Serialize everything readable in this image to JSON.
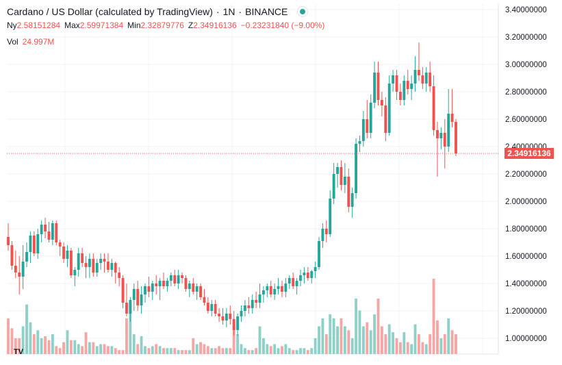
{
  "legend": {
    "title": "Cardano / US Dollar (calculated by TradingView)",
    "sep1": "·",
    "interval": "1N",
    "sep2": "·",
    "exchange": "BINANCE",
    "ohlc": [
      {
        "key": "Ny",
        "value": "2.58151284"
      },
      {
        "key": "Max",
        "value": "2.59971384"
      },
      {
        "key": "Min",
        "value": "2.32879776"
      },
      {
        "key": "Z",
        "value": "2.34916136"
      },
      {
        "key": "",
        "value": "−0.23231840 (−9.00%)"
      }
    ],
    "vol_label": "Vol",
    "vol_value": "24.997M"
  },
  "last_price_label": "2.34916136",
  "colors": {
    "up": "#26a69a",
    "down": "#ef5350",
    "up_volume": "#8fd0c8",
    "down_volume": "#f4a7a5",
    "grid": "#f0f3fa",
    "axis_text": "#131722"
  },
  "chart_data": {
    "type": "candlestick",
    "symbol": "ADAUSD",
    "exchange": "BINANCE",
    "interval": "1N",
    "ylim": [
      0.9,
      3.42
    ],
    "yticks": [
      "1.00000000",
      "1.20000000",
      "1.40000000",
      "1.60000000",
      "1.80000000",
      "2.00000000",
      "2.20000000",
      "2.40000000",
      "2.60000000",
      "2.80000000",
      "3.00000000",
      "3.20000000",
      "3.40000000"
    ],
    "last_price": 2.34916136,
    "candles": [
      [
        1.74,
        1.84,
        1.64,
        1.68,
        18
      ],
      [
        1.68,
        1.71,
        1.5,
        1.53,
        13
      ],
      [
        1.53,
        1.64,
        1.44,
        1.48,
        8
      ],
      [
        1.48,
        1.6,
        1.32,
        1.45,
        8
      ],
      [
        1.45,
        1.68,
        1.36,
        1.56,
        14
      ],
      [
        1.56,
        1.7,
        1.52,
        1.63,
        25
      ],
      [
        1.63,
        1.78,
        1.55,
        1.75,
        16
      ],
      [
        1.75,
        1.78,
        1.6,
        1.62,
        10
      ],
      [
        1.62,
        1.8,
        1.58,
        1.76,
        12
      ],
      [
        1.76,
        1.86,
        1.7,
        1.83,
        8
      ],
      [
        1.83,
        1.88,
        1.73,
        1.78,
        9
      ],
      [
        1.78,
        1.85,
        1.7,
        1.72,
        7
      ],
      [
        1.72,
        1.86,
        1.68,
        1.84,
        10
      ],
      [
        1.84,
        1.86,
        1.68,
        1.7,
        4
      ],
      [
        1.7,
        1.72,
        1.6,
        1.67,
        3
      ],
      [
        1.67,
        1.7,
        1.55,
        1.58,
        6
      ],
      [
        1.58,
        1.68,
        1.52,
        1.64,
        12
      ],
      [
        1.64,
        1.66,
        1.44,
        1.46,
        7
      ],
      [
        1.46,
        1.52,
        1.38,
        1.5,
        7
      ],
      [
        1.5,
        1.66,
        1.45,
        1.62,
        5
      ],
      [
        1.62,
        1.66,
        1.52,
        1.55,
        4
      ],
      [
        1.55,
        1.6,
        1.44,
        1.52,
        11
      ],
      [
        1.52,
        1.62,
        1.44,
        1.58,
        6
      ],
      [
        1.58,
        1.62,
        1.45,
        1.48,
        6
      ],
      [
        1.48,
        1.58,
        1.45,
        1.55,
        4
      ],
      [
        1.55,
        1.62,
        1.5,
        1.58,
        5
      ],
      [
        1.58,
        1.62,
        1.48,
        1.56,
        5
      ],
      [
        1.56,
        1.62,
        1.48,
        1.5,
        4
      ],
      [
        1.5,
        1.58,
        1.45,
        1.55,
        4
      ],
      [
        1.55,
        1.56,
        1.4,
        1.48,
        3
      ],
      [
        1.48,
        1.52,
        1.38,
        1.44,
        2
      ],
      [
        1.44,
        1.46,
        1.22,
        1.26,
        2
      ],
      [
        1.26,
        1.4,
        1.16,
        1.18,
        18
      ],
      [
        1.18,
        1.3,
        1.12,
        1.28,
        26
      ],
      [
        1.28,
        1.4,
        1.2,
        1.36,
        10
      ],
      [
        1.36,
        1.42,
        1.2,
        1.24,
        5
      ],
      [
        1.24,
        1.38,
        1.18,
        1.32,
        9
      ],
      [
        1.32,
        1.4,
        1.26,
        1.38,
        4
      ],
      [
        1.38,
        1.45,
        1.3,
        1.34,
        3
      ],
      [
        1.34,
        1.42,
        1.28,
        1.4,
        4
      ],
      [
        1.4,
        1.46,
        1.32,
        1.38,
        5
      ],
      [
        1.38,
        1.44,
        1.28,
        1.42,
        4
      ],
      [
        1.42,
        1.48,
        1.36,
        1.38,
        3
      ],
      [
        1.38,
        1.44,
        1.34,
        1.42,
        3
      ],
      [
        1.42,
        1.48,
        1.38,
        1.46,
        3
      ],
      [
        1.46,
        1.5,
        1.38,
        1.4,
        3
      ],
      [
        1.4,
        1.5,
        1.36,
        1.46,
        2
      ],
      [
        1.46,
        1.48,
        1.4,
        1.44,
        2
      ],
      [
        1.44,
        1.46,
        1.34,
        1.36,
        2
      ],
      [
        1.36,
        1.42,
        1.3,
        1.4,
        2
      ],
      [
        1.4,
        1.44,
        1.32,
        1.34,
        8
      ],
      [
        1.34,
        1.4,
        1.28,
        1.38,
        5
      ],
      [
        1.38,
        1.4,
        1.28,
        1.3,
        6
      ],
      [
        1.3,
        1.36,
        1.24,
        1.26,
        5
      ],
      [
        1.26,
        1.3,
        1.18,
        1.2,
        4
      ],
      [
        1.2,
        1.28,
        1.16,
        1.25,
        3
      ],
      [
        1.25,
        1.28,
        1.16,
        1.18,
        3
      ],
      [
        1.18,
        1.22,
        1.12,
        1.16,
        4
      ],
      [
        1.16,
        1.22,
        1.1,
        1.13,
        3
      ],
      [
        1.13,
        1.22,
        1.08,
        1.18,
        3
      ],
      [
        1.18,
        1.24,
        1.1,
        1.14,
        3
      ],
      [
        1.14,
        1.2,
        1.02,
        1.06,
        14
      ],
      [
        1.06,
        1.18,
        1.02,
        1.16,
        10
      ],
      [
        1.16,
        1.24,
        1.12,
        1.2,
        5
      ],
      [
        1.2,
        1.28,
        1.16,
        1.24,
        3
      ],
      [
        1.24,
        1.3,
        1.18,
        1.22,
        2
      ],
      [
        1.22,
        1.32,
        1.18,
        1.28,
        2
      ],
      [
        1.28,
        1.34,
        1.22,
        1.26,
        3
      ],
      [
        1.26,
        1.4,
        1.22,
        1.32,
        14
      ],
      [
        1.32,
        1.38,
        1.26,
        1.35,
        8
      ],
      [
        1.35,
        1.4,
        1.3,
        1.38,
        5
      ],
      [
        1.38,
        1.42,
        1.3,
        1.32,
        4
      ],
      [
        1.32,
        1.4,
        1.28,
        1.36,
        5
      ],
      [
        1.36,
        1.44,
        1.32,
        1.38,
        3
      ],
      [
        1.38,
        1.42,
        1.3,
        1.34,
        4
      ],
      [
        1.34,
        1.44,
        1.3,
        1.4,
        5
      ],
      [
        1.4,
        1.46,
        1.36,
        1.44,
        3
      ],
      [
        1.44,
        1.48,
        1.36,
        1.38,
        2
      ],
      [
        1.38,
        1.44,
        1.32,
        1.42,
        2
      ],
      [
        1.42,
        1.5,
        1.38,
        1.46,
        3
      ],
      [
        1.46,
        1.52,
        1.4,
        1.48,
        3
      ],
      [
        1.48,
        1.52,
        1.42,
        1.44,
        2
      ],
      [
        1.44,
        1.5,
        1.4,
        1.49,
        3
      ],
      [
        1.49,
        1.56,
        1.44,
        1.52,
        8
      ],
      [
        1.52,
        1.74,
        1.5,
        1.71,
        14
      ],
      [
        1.71,
        1.84,
        1.66,
        1.8,
        18
      ],
      [
        1.8,
        1.86,
        1.7,
        1.76,
        10
      ],
      [
        1.76,
        2.08,
        1.74,
        2.02,
        20
      ],
      [
        2.02,
        2.28,
        1.98,
        2.2,
        18
      ],
      [
        2.2,
        2.28,
        2.1,
        2.25,
        14
      ],
      [
        2.25,
        2.3,
        2.08,
        2.12,
        18
      ],
      [
        2.12,
        2.28,
        2.06,
        2.18,
        14
      ],
      [
        2.18,
        2.24,
        1.92,
        1.96,
        12
      ],
      [
        1.96,
        2.1,
        1.88,
        2.06,
        8
      ],
      [
        2.06,
        2.46,
        2.02,
        2.42,
        28
      ],
      [
        2.42,
        2.48,
        2.36,
        2.44,
        22
      ],
      [
        2.44,
        2.66,
        2.4,
        2.6,
        14
      ],
      [
        2.6,
        2.74,
        2.46,
        2.5,
        16
      ],
      [
        2.5,
        2.78,
        2.46,
        2.72,
        12
      ],
      [
        2.72,
        3.02,
        2.68,
        2.94,
        20
      ],
      [
        2.94,
        3.02,
        2.7,
        2.74,
        28
      ],
      [
        2.74,
        2.8,
        2.62,
        2.7,
        14
      ],
      [
        2.7,
        2.76,
        2.44,
        2.5,
        10
      ],
      [
        2.5,
        2.92,
        2.48,
        2.86,
        15
      ],
      [
        2.86,
        2.96,
        2.8,
        2.92,
        11
      ],
      [
        2.92,
        2.96,
        2.74,
        2.8,
        8
      ],
      [
        2.8,
        2.86,
        2.7,
        2.74,
        6
      ],
      [
        2.74,
        2.92,
        2.7,
        2.88,
        11
      ],
      [
        2.88,
        2.96,
        2.78,
        2.82,
        6
      ],
      [
        2.82,
        2.92,
        2.74,
        2.86,
        5
      ],
      [
        2.86,
        3.06,
        2.8,
        2.96,
        15
      ],
      [
        2.96,
        3.16,
        2.88,
        2.92,
        10
      ],
      [
        2.92,
        2.98,
        2.82,
        2.86,
        6
      ],
      [
        2.86,
        2.98,
        2.8,
        2.94,
        5
      ],
      [
        2.94,
        3.02,
        2.8,
        2.84,
        10
      ],
      [
        2.84,
        2.92,
        2.48,
        2.52,
        38
      ],
      [
        2.52,
        2.58,
        2.18,
        2.46,
        17
      ],
      [
        2.46,
        2.54,
        2.38,
        2.5,
        8
      ],
      [
        2.5,
        2.6,
        2.24,
        2.4,
        10
      ],
      [
        2.4,
        2.82,
        2.36,
        2.64,
        18
      ],
      [
        2.64,
        2.82,
        2.54,
        2.58,
        12
      ],
      [
        2.58,
        2.6,
        2.33,
        2.35,
        10
      ]
    ]
  }
}
